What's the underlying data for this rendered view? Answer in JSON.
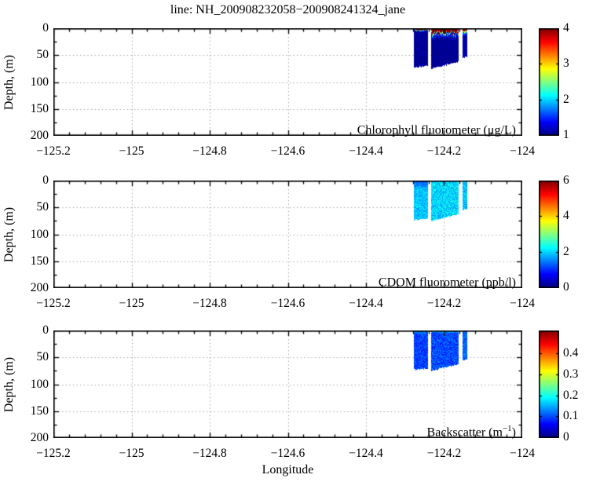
{
  "title": "line: NH_200908232058−200908241324_jane",
  "xlabel": "Longitude",
  "colors": {
    "background": "#ffffff",
    "axis": "#000000",
    "grid": "#9a9a9a",
    "colormap_low": "#000080",
    "colormap_high": "#800000"
  },
  "chart_data": [
    {
      "type": "heatmap",
      "name": "chlorophyll",
      "label": "Chlorophyll fluorometer (μg/L)",
      "label_pre": "Chlorophyll fluorometer (μg/L)",
      "label_sup": "",
      "label_post": "",
      "ylabel": "Depth, (m)",
      "xlim": [
        -125.2,
        -124
      ],
      "ylim": [
        0,
        200
      ],
      "y_reversed": true,
      "grid": "dotted",
      "colormap": "jet",
      "xticks": [
        "−125.2",
        "−125",
        "−124.8",
        "−124.6",
        "−124.4",
        "−124.2",
        "−124"
      ],
      "xtick_values": [
        -125.2,
        -125,
        -124.8,
        -124.6,
        -124.4,
        -124.2,
        -124
      ],
      "yticks": [
        "0",
        "50",
        "100",
        "150",
        "200"
      ],
      "ytick_values": [
        0,
        50,
        100,
        150,
        200
      ],
      "x_minor_step": 0.04,
      "y_minor_step": 25,
      "clim": [
        1,
        4
      ],
      "colorbar_ticks": [
        "1",
        "2",
        "3",
        "4"
      ],
      "colorbar_tick_values": [
        1,
        2,
        3,
        4
      ],
      "segments": [
        {
          "lon": [
            -124.277,
            -124.241
          ],
          "bottom_depth": [
            73,
            70
          ],
          "tooth": 2,
          "layers": [
            [
              0,
              2.5,
              4.3,
              4.0,
              0.3
            ],
            [
              2.5,
              5,
              2.2,
              1.3,
              0.7
            ],
            [
              5,
              200,
              1.07,
              1.04,
              0.12
            ]
          ]
        },
        {
          "lon": [
            -124.233,
            -124.163
          ],
          "bottom_depth": [
            75,
            62
          ],
          "tooth": 4,
          "layers": [
            [
              0,
              6.5,
              4.4,
              4.2,
              0.3
            ],
            [
              6.5,
              11,
              3.4,
              1.7,
              1.0
            ],
            [
              11,
              17,
              1.6,
              1.15,
              0.35
            ],
            [
              17,
              200,
              1.06,
              1.04,
              0.1
            ]
          ]
        },
        {
          "lon": [
            -124.153,
            -124.141
          ],
          "bottom_depth": [
            55,
            53
          ],
          "tooth": 2,
          "layers": [
            [
              0,
              5,
              4.3,
              4.1,
              0.3
            ],
            [
              5,
              8,
              2.9,
              2.1,
              0.6
            ],
            [
              8,
              13,
              2.0,
              1.3,
              0.4
            ],
            [
              13,
              200,
              1.12,
              1.08,
              0.15
            ]
          ]
        }
      ]
    },
    {
      "type": "heatmap",
      "name": "cdom",
      "label": "CDOM fluorometer (ppb/l)",
      "label_pre": "CDOM fluorometer (ppb/l)",
      "label_sup": "",
      "label_post": "",
      "ylabel": "Depth, (m)",
      "xlim": [
        -125.2,
        -124
      ],
      "ylim": [
        0,
        200
      ],
      "y_reversed": true,
      "grid": "dotted",
      "colormap": "jet",
      "xticks": [
        "−125.2",
        "−125",
        "−124.8",
        "−124.6",
        "−124.4",
        "−124.2",
        "−124"
      ],
      "xtick_values": [
        -125.2,
        -125,
        -124.8,
        -124.6,
        -124.4,
        -124.2,
        -124
      ],
      "yticks": [
        "0",
        "50",
        "100",
        "150",
        "200"
      ],
      "ytick_values": [
        0,
        50,
        100,
        150,
        200
      ],
      "x_minor_step": 0.04,
      "y_minor_step": 25,
      "clim": [
        0,
        6
      ],
      "colorbar_ticks": [
        "0",
        "2",
        "4",
        "6"
      ],
      "colorbar_tick_values": [
        0,
        2,
        4,
        6
      ],
      "segments": [
        {
          "lon": [
            -124.277,
            -124.241
          ],
          "bottom_depth": [
            73,
            70
          ],
          "tooth": 1,
          "layers": [
            [
              0,
              12,
              1.35,
              1.6,
              0.35
            ],
            [
              12,
              200,
              1.9,
              2.0,
              0.45
            ]
          ]
        },
        {
          "lon": [
            -124.233,
            -124.163
          ],
          "bottom_depth": [
            75,
            62
          ],
          "tooth": 1,
          "layers": [
            [
              0,
              200,
              2.05,
              1.95,
              0.5
            ]
          ]
        },
        {
          "lon": [
            -124.153,
            -124.141
          ],
          "bottom_depth": [
            55,
            53
          ],
          "tooth": 1,
          "layers": [
            [
              0,
              200,
              1.9,
              1.85,
              0.45
            ]
          ]
        }
      ]
    },
    {
      "type": "heatmap",
      "name": "backscatter",
      "label": "Backscatter (m⁻¹)",
      "label_pre": "Backscatter (m",
      "label_sup": "−1",
      "label_post": ")",
      "ylabel": "Depth, (m)",
      "xlabel": "Longitude",
      "xlim": [
        -125.2,
        -124
      ],
      "ylim": [
        0,
        200
      ],
      "y_reversed": true,
      "grid": "dotted",
      "colormap": "jet",
      "xticks": [
        "−125.2",
        "−125",
        "−124.8",
        "−124.6",
        "−124.4",
        "−124.2",
        "−124"
      ],
      "xtick_values": [
        -125.2,
        -125,
        -124.8,
        -124.6,
        -124.4,
        -124.2,
        -124
      ],
      "yticks": [
        "0",
        "50",
        "100",
        "150",
        "200"
      ],
      "ytick_values": [
        0,
        50,
        100,
        150,
        200
      ],
      "x_minor_step": 0.04,
      "y_minor_step": 25,
      "clim": [
        0,
        0.51
      ],
      "colorbar_ticks": [
        "0",
        "0.1",
        "0.2",
        "0.3",
        "0.4"
      ],
      "colorbar_tick_values": [
        0,
        0.1,
        0.2,
        0.3,
        0.4
      ],
      "segments": [
        {
          "lon": [
            -124.277,
            -124.241
          ],
          "bottom_depth": [
            73,
            70
          ],
          "tooth": 1,
          "layers": [
            [
              0,
              5,
              0.13,
              0.11,
              0.03
            ],
            [
              5,
              200,
              0.095,
              0.1,
              0.035
            ]
          ]
        },
        {
          "lon": [
            -124.233,
            -124.163
          ],
          "bottom_depth": [
            75,
            62
          ],
          "tooth": 1,
          "layers": [
            [
              0,
              4,
              0.15,
              0.12,
              0.04
            ],
            [
              4,
              200,
              0.1,
              0.105,
              0.04
            ]
          ]
        },
        {
          "lon": [
            -124.153,
            -124.141
          ],
          "bottom_depth": [
            56,
            54
          ],
          "tooth": 1,
          "layers": [
            [
              0,
              200,
              0.115,
              0.11,
              0.03
            ]
          ]
        }
      ]
    }
  ]
}
